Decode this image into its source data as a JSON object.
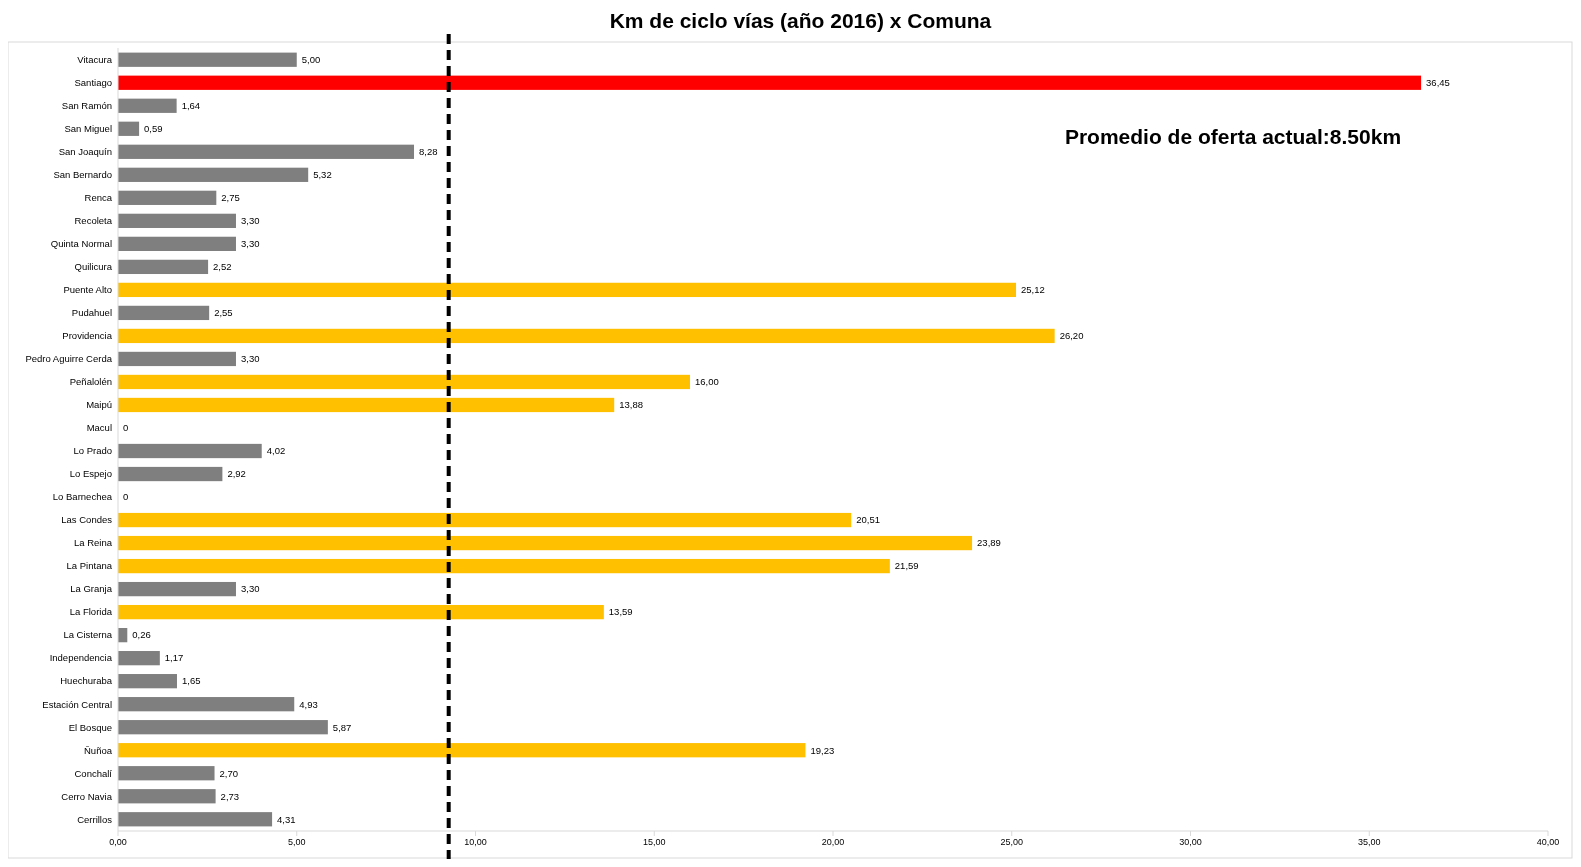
{
  "chart_data": {
    "type": "bar",
    "orientation": "horizontal",
    "title": "Km de ciclo vías (año 2016) x Comuna",
    "categories": [
      "Vitacura",
      "Santiago",
      "San Ramón",
      "San Miguel",
      "San Joaquín",
      "San Bernardo",
      "Renca",
      "Recoleta",
      "Quinta Normal",
      "Quilicura",
      "Puente Alto",
      "Pudahuel",
      "Providencia",
      "Pedro Aguirre Cerda",
      "Peñalolén",
      "Maipú",
      "Macul",
      "Lo Prado",
      "Lo Espejo",
      "Lo Barnechea",
      "Las Condes",
      "La Reina",
      "La Pintana",
      "La Granja",
      "La Florida",
      "La Cisterna",
      "Independencia",
      "Huechuraba",
      "Estación Central",
      "El Bosque",
      "Ñuñoa",
      "Conchalí",
      "Cerro Navia",
      "Cerrillos"
    ],
    "values": [
      5.0,
      36.45,
      1.64,
      0.59,
      8.28,
      5.32,
      2.75,
      3.3,
      3.3,
      2.52,
      25.12,
      2.55,
      26.2,
      3.3,
      16.0,
      13.88,
      0,
      4.02,
      2.92,
      0,
      20.51,
      23.89,
      21.59,
      3.3,
      13.59,
      0.26,
      1.17,
      1.65,
      4.93,
      5.87,
      19.23,
      2.7,
      2.73,
      4.31
    ],
    "value_labels": [
      "5,00",
      "36,45",
      "1,64",
      "0,59",
      "8,28",
      "5,32",
      "2,75",
      "3,30",
      "3,30",
      "2,52",
      "25,12",
      "2,55",
      "26,20",
      "3,30",
      "16,00",
      "13,88",
      "0",
      "4,02",
      "2,92",
      "0",
      "20,51",
      "23,89",
      "21,59",
      "3,30",
      "13,59",
      "0,26",
      "1,17",
      "1,65",
      "4,93",
      "5,87",
      "19,23",
      "2,70",
      "2,73",
      "4,31"
    ],
    "colors": [
      "#7f7f7f",
      "#ff0000",
      "#7f7f7f",
      "#7f7f7f",
      "#7f7f7f",
      "#7f7f7f",
      "#7f7f7f",
      "#7f7f7f",
      "#7f7f7f",
      "#7f7f7f",
      "#ffc000",
      "#7f7f7f",
      "#ffc000",
      "#7f7f7f",
      "#ffc000",
      "#ffc000",
      "#7f7f7f",
      "#7f7f7f",
      "#7f7f7f",
      "#7f7f7f",
      "#ffc000",
      "#ffc000",
      "#ffc000",
      "#7f7f7f",
      "#ffc000",
      "#7f7f7f",
      "#7f7f7f",
      "#7f7f7f",
      "#7f7f7f",
      "#7f7f7f",
      "#ffc000",
      "#7f7f7f",
      "#7f7f7f",
      "#7f7f7f"
    ],
    "xlim": [
      0,
      40
    ],
    "xticks": [
      {
        "value": 0,
        "label": "0,00"
      },
      {
        "value": 5,
        "label": "5,00"
      },
      {
        "value": 10,
        "label": "10,00"
      },
      {
        "value": 15,
        "label": "15,00"
      },
      {
        "value": 20,
        "label": "20,00"
      },
      {
        "value": 25,
        "label": "25,00"
      },
      {
        "value": 30,
        "label": "30,00"
      },
      {
        "value": 35,
        "label": "35,00"
      },
      {
        "value": 40,
        "label": "40,00"
      }
    ],
    "ref_lines": [
      {
        "axis": "x",
        "value": 9.25,
        "color": "#000000",
        "line_style": "dashed"
      }
    ],
    "annotations": [
      "Promedio de oferta actual:8.50km"
    ]
  }
}
